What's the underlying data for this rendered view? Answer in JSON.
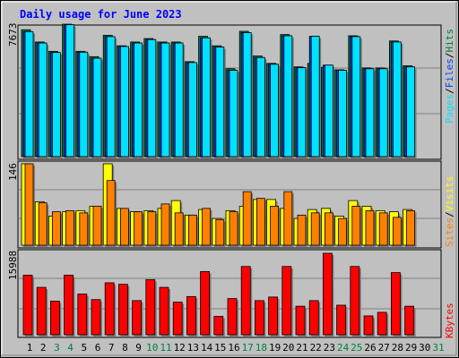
{
  "title": "Daily usage for June 2023",
  "colors": {
    "background": "#c0c0c0",
    "title": "#0000ff",
    "hits": "#008040",
    "files": "#0040ff",
    "pages": "#00e0ff",
    "visits": "#ffff00",
    "sites": "#ff8000",
    "kbytes": "#ff0000",
    "day_normal": "#000000",
    "day_weekend": "#008040"
  },
  "legend": {
    "top": [
      "Pages",
      "Files",
      "Hits"
    ],
    "middle": [
      "Sites",
      "Visits"
    ],
    "bottom": [
      "KBytes"
    ],
    "separator": "/"
  },
  "chart_data": [
    {
      "type": "bar",
      "panel": "hits-files-pages",
      "ymax_label": "7673",
      "ylim": [
        0,
        7673
      ],
      "categories": [
        "1",
        "2",
        "3",
        "4",
        "5",
        "6",
        "7",
        "8",
        "9",
        "10",
        "11",
        "12",
        "13",
        "14",
        "15",
        "16",
        "17",
        "18",
        "19",
        "20",
        "21",
        "22",
        "23",
        "24",
        "25",
        "26",
        "27",
        "28",
        "29",
        "30",
        "31"
      ],
      "series": [
        {
          "name": "Hits",
          "values": [
            7350,
            6640,
            6100,
            7673,
            6100,
            5790,
            7030,
            6420,
            6640,
            6840,
            6640,
            6640,
            5500,
            6970,
            6420,
            5090,
            7260,
            5830,
            5400,
            7070,
            5200,
            5400,
            5170,
            5030,
            7000,
            5140,
            5140,
            6700,
            5260,
            0,
            0
          ]
        },
        {
          "name": "Files",
          "values": [
            7240,
            6580,
            6030,
            7640,
            6050,
            5700,
            6950,
            6380,
            6580,
            6780,
            6580,
            6580,
            5450,
            6880,
            6350,
            5000,
            7180,
            5740,
            5350,
            7000,
            5150,
            6970,
            5300,
            5000,
            6950,
            5090,
            5090,
            6640,
            5200,
            0,
            0
          ]
        },
        {
          "name": "Pages",
          "values": [
            7240,
            6580,
            6030,
            7640,
            6050,
            5700,
            6950,
            6380,
            6580,
            6780,
            6580,
            6580,
            5450,
            6880,
            6350,
            5000,
            7180,
            5740,
            5350,
            7000,
            5150,
            6970,
            5300,
            5000,
            6950,
            5090,
            5090,
            6640,
            5200,
            0,
            0
          ]
        }
      ]
    },
    {
      "type": "bar",
      "panel": "visits-sites",
      "ymax_label": "146",
      "ylim": [
        0,
        146
      ],
      "categories": [
        "1",
        "2",
        "3",
        "4",
        "5",
        "6",
        "7",
        "8",
        "9",
        "10",
        "11",
        "12",
        "13",
        "14",
        "15",
        "16",
        "17",
        "18",
        "19",
        "20",
        "21",
        "22",
        "23",
        "24",
        "25",
        "26",
        "27",
        "28",
        "29",
        "30",
        "31"
      ],
      "series": [
        {
          "name": "Visits",
          "values": [
            146,
            78,
            52,
            60,
            62,
            70,
            146,
            66,
            60,
            62,
            66,
            80,
            54,
            64,
            48,
            62,
            70,
            82,
            82,
            66,
            48,
            64,
            66,
            52,
            80,
            70,
            62,
            60,
            64,
            0,
            0
          ]
        },
        {
          "name": "Sites",
          "values": [
            146,
            76,
            60,
            62,
            58,
            70,
            116,
            66,
            60,
            60,
            74,
            58,
            54,
            66,
            46,
            60,
            96,
            84,
            70,
            96,
            54,
            58,
            58,
            48,
            70,
            62,
            58,
            50,
            62,
            0,
            0
          ]
        }
      ]
    },
    {
      "type": "bar",
      "panel": "kbytes",
      "ymax_label": "15988",
      "ylim": [
        0,
        15988
      ],
      "categories": [
        "1",
        "2",
        "3",
        "4",
        "5",
        "6",
        "7",
        "8",
        "9",
        "10",
        "11",
        "12",
        "13",
        "14",
        "15",
        "16",
        "17",
        "18",
        "19",
        "20",
        "21",
        "22",
        "23",
        "24",
        "25",
        "26",
        "27",
        "28",
        "29",
        "30",
        "31"
      ],
      "series": [
        {
          "name": "KBytes",
          "values": [
            11700,
            9300,
            6600,
            11700,
            8000,
            6900,
            10200,
            9900,
            6700,
            10800,
            9300,
            6400,
            7500,
            12400,
            3600,
            7100,
            13400,
            6700,
            7400,
            13400,
            5600,
            6700,
            15988,
            5800,
            13400,
            3700,
            4400,
            12200,
            5600,
            0,
            0
          ]
        }
      ]
    }
  ],
  "days": [
    "1",
    "2",
    "3",
    "4",
    "5",
    "6",
    "7",
    "8",
    "9",
    "10",
    "11",
    "12",
    "13",
    "14",
    "15",
    "16",
    "17",
    "18",
    "19",
    "20",
    "21",
    "22",
    "23",
    "24",
    "25",
    "26",
    "27",
    "28",
    "29",
    "30",
    "31"
  ],
  "weekend_days": [
    "3",
    "4",
    "10",
    "11",
    "17",
    "18",
    "24",
    "25",
    "31"
  ]
}
